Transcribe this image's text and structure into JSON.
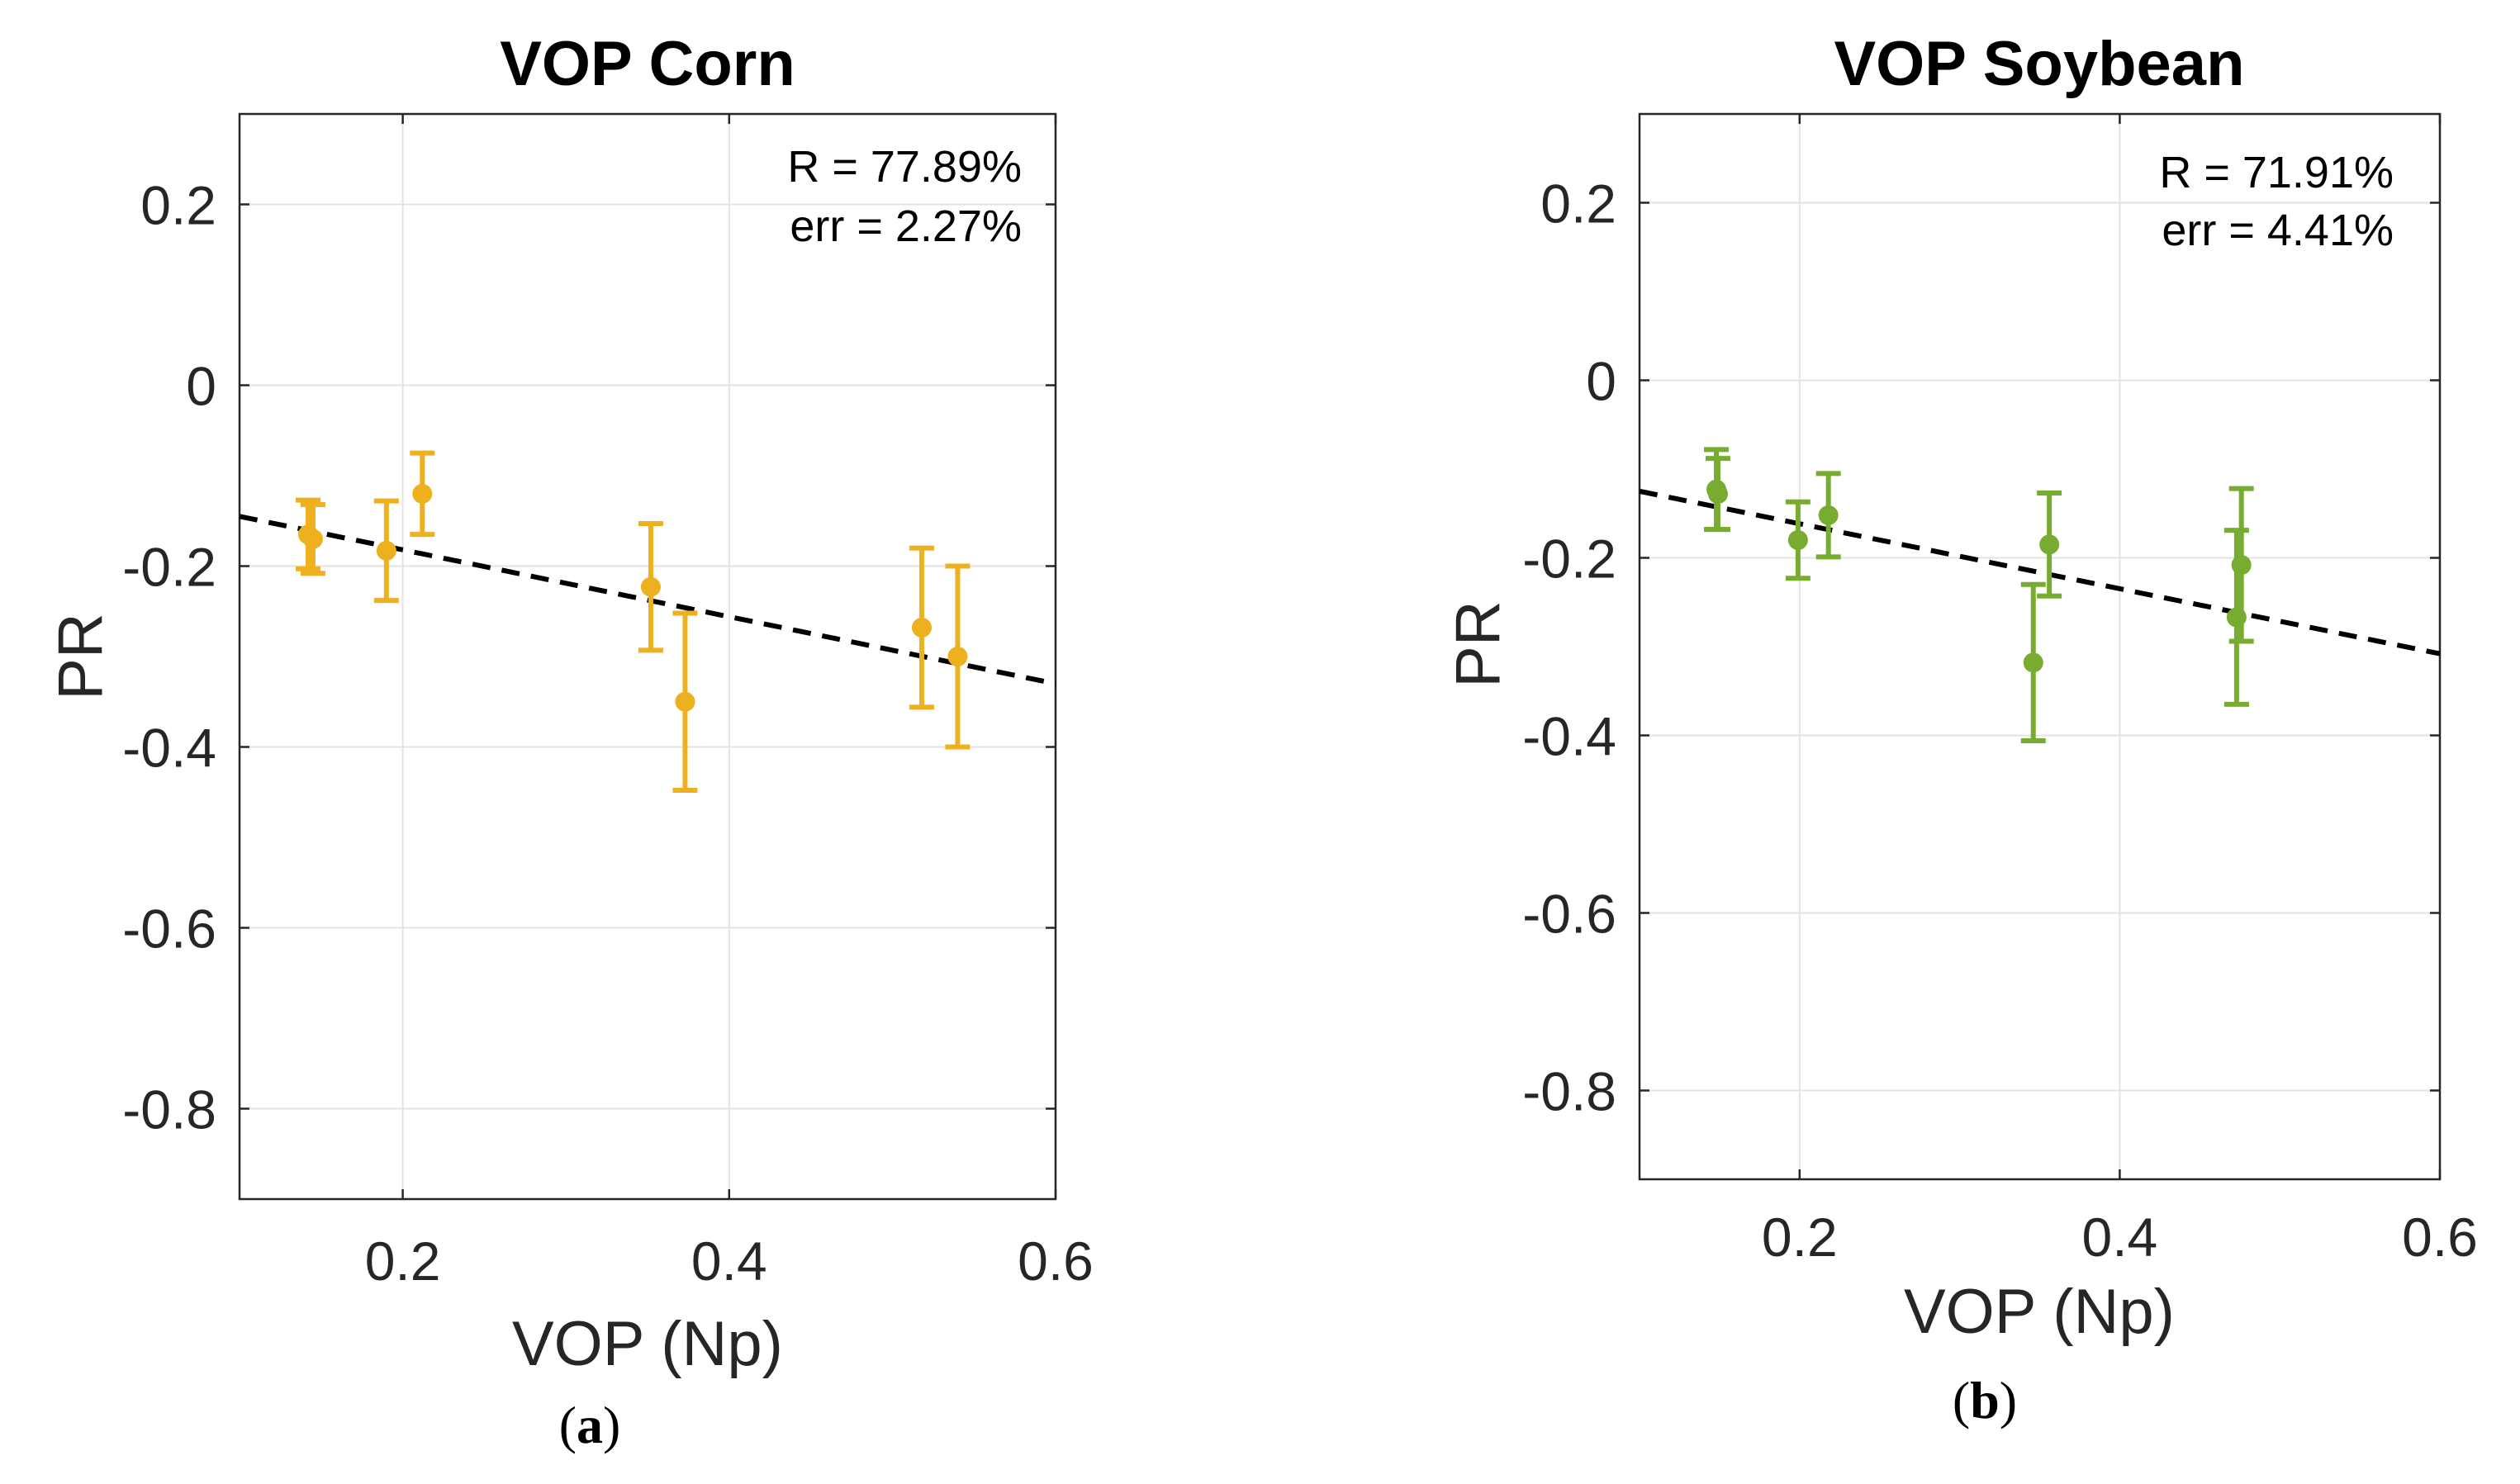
{
  "chart_data": [
    {
      "type": "scatter",
      "title": "VOP Corn",
      "xlabel": "VOP (Np)",
      "ylabel": "PR",
      "xlim": [
        0.1,
        0.6
      ],
      "ylim": [
        -0.9,
        0.3
      ],
      "xticks": [
        0.2,
        0.4,
        0.6
      ],
      "yticks": [
        0.2,
        0,
        -0.2,
        -0.4,
        -0.6,
        -0.8
      ],
      "xtick_labels": [
        "0.2",
        "0.4",
        "0.6"
      ],
      "ytick_labels": [
        "0.2",
        "0",
        "-0.2",
        "-0.4",
        "-0.6",
        "-0.8"
      ],
      "grid": true,
      "color": "#EDB120",
      "annotation_lines": [
        "R = 77.89%",
        "err = 2.27%"
      ],
      "panel_label_open": "(",
      "panel_label": "a",
      "panel_label_close": ")",
      "points": [
        {
          "x": 0.142,
          "y": -0.165,
          "err": 0.038
        },
        {
          "x": 0.145,
          "y": -0.17,
          "err": 0.038
        },
        {
          "x": 0.19,
          "y": -0.183,
          "err": 0.055
        },
        {
          "x": 0.212,
          "y": -0.12,
          "err": 0.045
        },
        {
          "x": 0.352,
          "y": -0.223,
          "err": 0.07
        },
        {
          "x": 0.373,
          "y": -0.35,
          "err": 0.098
        },
        {
          "x": 0.518,
          "y": -0.268,
          "err": 0.088
        },
        {
          "x": 0.54,
          "y": -0.3,
          "err": 0.1
        }
      ],
      "fit_line": {
        "x": [
          0.1,
          0.6
        ],
        "y": [
          -0.145,
          -0.33
        ]
      }
    },
    {
      "type": "scatter",
      "title": "VOP Soybean",
      "xlabel": "VOP (Np)",
      "ylabel": "PR",
      "xlim": [
        0.1,
        0.6
      ],
      "ylim": [
        -0.9,
        0.3
      ],
      "xticks": [
        0.2,
        0.4,
        0.6
      ],
      "yticks": [
        0.2,
        0,
        -0.2,
        -0.4,
        -0.6,
        -0.8
      ],
      "xtick_labels": [
        "0.2",
        "0.4",
        "0.6"
      ],
      "ytick_labels": [
        "0.2",
        "0",
        "-0.2",
        "-0.4",
        "-0.6",
        "-0.8"
      ],
      "grid": true,
      "color": "#77AC30",
      "annotation_lines": [
        "R = 71.91%",
        "err = 4.41%"
      ],
      "panel_label_open": "(",
      "panel_label": "b",
      "panel_label_close": ")",
      "points": [
        {
          "x": 0.148,
          "y": -0.123,
          "err": 0.045
        },
        {
          "x": 0.149,
          "y": -0.128,
          "err": 0.04
        },
        {
          "x": 0.199,
          "y": -0.18,
          "err": 0.043
        },
        {
          "x": 0.218,
          "y": -0.152,
          "err": 0.047
        },
        {
          "x": 0.346,
          "y": -0.318,
          "err": 0.088
        },
        {
          "x": 0.356,
          "y": -0.185,
          "err": 0.058
        },
        {
          "x": 0.473,
          "y": -0.267,
          "err": 0.098
        },
        {
          "x": 0.476,
          "y": -0.208,
          "err": 0.086
        }
      ],
      "fit_line": {
        "x": [
          0.1,
          0.6
        ],
        "y": [
          -0.125,
          -0.308
        ]
      }
    }
  ]
}
